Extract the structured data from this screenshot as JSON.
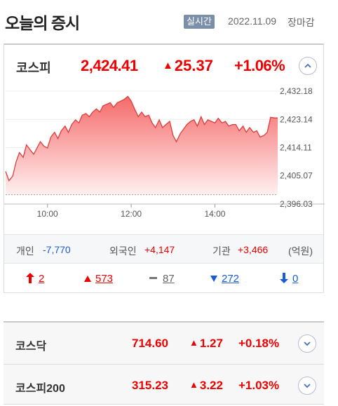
{
  "header": {
    "title": "오늘의 증시",
    "live_badge": "실시간",
    "date": "2022.11.09",
    "session_status": "장마감"
  },
  "main_index": {
    "name": "코스피",
    "value": "2,424.41",
    "change_arrow": "▲",
    "change": "25.37",
    "rate": "+1.06%",
    "toggle_icon": "chevron-up-icon"
  },
  "chart_data": {
    "type": "area",
    "x_ticks": [
      "10:00",
      "12:00",
      "14:00"
    ],
    "y_ticks": [
      "2,432.18",
      "2,423.14",
      "2,414.11",
      "2,405.07",
      "2,396.03"
    ],
    "ylim": [
      2396.03,
      2432.18
    ],
    "baseline": 2399.04,
    "x_range": [
      9.0,
      15.5
    ],
    "colors": {
      "line": "#e03b3b",
      "fill_top": "#f56a6a",
      "fill_bottom": "#fff0f0",
      "baseline": "#999999"
    },
    "x": [
      9.0,
      9.08,
      9.17,
      9.25,
      9.33,
      9.42,
      9.5,
      9.58,
      9.67,
      9.75,
      9.83,
      9.92,
      10.0,
      10.08,
      10.17,
      10.25,
      10.33,
      10.42,
      10.5,
      10.58,
      10.67,
      10.75,
      10.83,
      10.92,
      11.0,
      11.08,
      11.17,
      11.25,
      11.33,
      11.42,
      11.5,
      11.58,
      11.67,
      11.75,
      11.83,
      11.92,
      12.0,
      12.08,
      12.17,
      12.25,
      12.33,
      12.42,
      12.5,
      12.58,
      12.67,
      12.75,
      12.83,
      12.92,
      13.0,
      13.08,
      13.17,
      13.25,
      13.33,
      13.42,
      13.5,
      13.58,
      13.67,
      13.75,
      13.83,
      13.92,
      14.0,
      14.08,
      14.17,
      14.25,
      14.33,
      14.42,
      14.5,
      14.58,
      14.67,
      14.75,
      14.83,
      14.92,
      15.0,
      15.08,
      15.17,
      15.25,
      15.33,
      15.42,
      15.5
    ],
    "values": [
      2406.5,
      2403.5,
      2405.0,
      2409.5,
      2412.5,
      2411.0,
      2415.0,
      2413.5,
      2412.0,
      2414.0,
      2416.0,
      2414.5,
      2414.0,
      2417.5,
      2419.0,
      2417.0,
      2419.5,
      2421.0,
      2419.0,
      2421.5,
      2423.0,
      2422.0,
      2424.5,
      2425.0,
      2424.0,
      2425.5,
      2426.5,
      2425.5,
      2427.5,
      2428.0,
      2428.5,
      2427.0,
      2428.5,
      2429.0,
      2429.5,
      2430.5,
      2429.0,
      2426.5,
      2424.0,
      2425.5,
      2424.0,
      2424.5,
      2422.0,
      2420.5,
      2423.0,
      2420.5,
      2421.5,
      2422.5,
      2418.0,
      2416.0,
      2418.5,
      2420.0,
      2421.5,
      2422.5,
      2423.0,
      2421.0,
      2424.0,
      2421.5,
      2423.0,
      2422.5,
      2422.0,
      2423.5,
      2422.0,
      2422.5,
      2421.0,
      2421.5,
      2421.5,
      2419.5,
      2421.0,
      2419.0,
      2420.5,
      2419.0,
      2419.5,
      2417.5,
      2418.0,
      2419.0,
      2423.8,
      2423.6,
      2423.6
    ]
  },
  "investors": {
    "individual_label": "개인",
    "individual_value": "-7,770",
    "foreign_label": "외국인",
    "foreign_value": "+4,147",
    "institution_label": "기관",
    "institution_value": "+3,466",
    "unit": "(억원)"
  },
  "breadth": {
    "upper_limit_icon": "arrow-up-icon",
    "upper_limit": "2",
    "rise_icon": "triangle-up-icon",
    "rise": "573",
    "flat_icon": "dash-icon",
    "flat": "87",
    "fall_icon": "triangle-down-icon",
    "fall": "272",
    "lower_limit_icon": "arrow-down-icon",
    "lower_limit": "0"
  },
  "sub_indices": [
    {
      "name": "코스닥",
      "value": "714.60",
      "change_arrow": "▲",
      "change": "1.27",
      "rate": "+0.18%",
      "toggle_icon": "chevron-down-icon"
    },
    {
      "name": "코스피200",
      "value": "315.23",
      "change_arrow": "▲",
      "change": "3.22",
      "rate": "+1.03%",
      "toggle_icon": "chevron-down-icon"
    }
  ]
}
